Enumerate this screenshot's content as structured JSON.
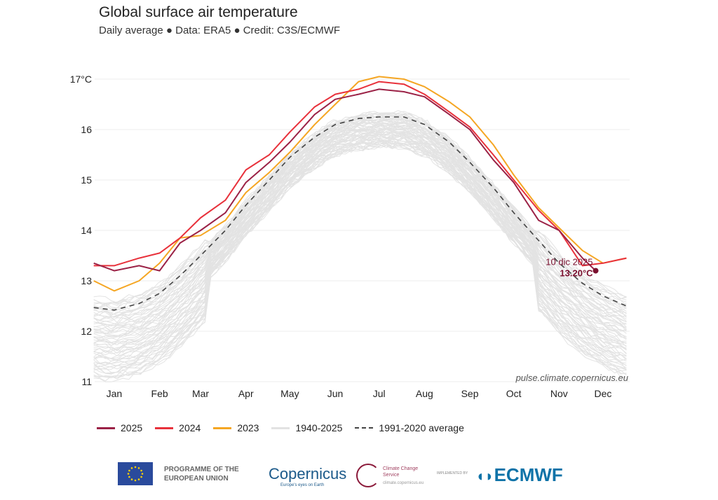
{
  "header": {
    "title": "Global surface air temperature",
    "subtitle": "Daily average ● Data: ERA5 ● Credit: C3S/ECMWF"
  },
  "chart_data": {
    "type": "line",
    "title": "Global surface air temperature",
    "subtitle": "Daily average ● Data: ERA5 ● Credit: C3S/ECMWF",
    "xlabel": "",
    "ylabel": "",
    "ylim": [
      11,
      17.2
    ],
    "yticks": [
      {
        "v": 11,
        "label": "11"
      },
      {
        "v": 12,
        "label": "12"
      },
      {
        "v": 13,
        "label": "13"
      },
      {
        "v": 14,
        "label": "14"
      },
      {
        "v": 15,
        "label": "15"
      },
      {
        "v": 16,
        "label": "16"
      },
      {
        "v": 17,
        "label": "17°C"
      }
    ],
    "xticks": [
      "Jan",
      "Feb",
      "Mar",
      "Apr",
      "May",
      "Jun",
      "Jul",
      "Aug",
      "Sep",
      "Oct",
      "Nov",
      "Dec"
    ],
    "grid": "horizontal",
    "legend_position": "bottom",
    "x": [
      "01-01",
      "01-15",
      "02-01",
      "02-15",
      "03-01",
      "03-15",
      "04-01",
      "04-15",
      "05-01",
      "05-15",
      "06-01",
      "06-15",
      "07-01",
      "07-15",
      "08-01",
      "08-15",
      "09-01",
      "09-15",
      "10-01",
      "10-15",
      "11-01",
      "11-15",
      "12-01",
      "12-15",
      "12-31"
    ],
    "series": [
      {
        "name": "1940-2025",
        "color": "#dddddd",
        "style": "band-of-lines"
      },
      {
        "name": "1991-2020 average",
        "color": "#444444",
        "style": "dashed",
        "values": [
          12.47,
          12.42,
          12.55,
          12.75,
          13.1,
          13.5,
          14.0,
          14.5,
          15.0,
          15.45,
          15.85,
          16.1,
          16.22,
          16.25,
          16.25,
          16.1,
          15.75,
          15.35,
          14.85,
          14.35,
          13.8,
          13.35,
          12.95,
          12.7,
          12.5
        ]
      },
      {
        "name": "2023",
        "color": "#f5a623",
        "values": [
          13.0,
          12.8,
          13.0,
          13.35,
          13.85,
          13.9,
          14.2,
          14.75,
          15.15,
          15.55,
          16.1,
          16.5,
          16.95,
          17.05,
          17.0,
          16.85,
          16.55,
          16.25,
          15.7,
          15.1,
          14.45,
          14.05,
          13.6,
          13.35,
          13.45
        ]
      },
      {
        "name": "2024",
        "color": "#e8313b",
        "values": [
          13.3,
          13.3,
          13.45,
          13.55,
          13.85,
          14.25,
          14.6,
          15.2,
          15.5,
          15.95,
          16.45,
          16.7,
          16.8,
          16.95,
          16.9,
          16.7,
          16.35,
          16.05,
          15.5,
          15.0,
          14.4,
          14.0,
          13.3,
          13.35,
          13.45
        ]
      },
      {
        "name": "2025",
        "color": "#9b2246",
        "values": [
          13.35,
          13.2,
          13.3,
          13.2,
          13.75,
          14.0,
          14.35,
          14.95,
          15.35,
          15.75,
          16.3,
          16.6,
          16.7,
          16.8,
          16.75,
          16.65,
          16.3,
          16.0,
          15.4,
          14.95,
          14.2,
          14.0,
          13.45,
          null,
          null
        ],
        "last_point": {
          "x": "12-10",
          "y": 13.2
        }
      }
    ],
    "annotation": {
      "date": "10 dic 2025",
      "value": "13.20°C",
      "color": "#7a0f2e"
    },
    "source": "pulse.climate.copernicus.eu"
  },
  "legend": [
    {
      "label": "2025",
      "color": "#9b2246"
    },
    {
      "label": "2024",
      "color": "#e8313b"
    },
    {
      "label": "2023",
      "color": "#f5a623"
    },
    {
      "label": "1940-2025",
      "color": "#dddddd"
    },
    {
      "label": "1991-2020 average",
      "color": "#444444",
      "dashed": true
    }
  ],
  "footer": {
    "eu": "PROGRAMME OF THE EUROPEAN UNION",
    "copernicus": "opernicus",
    "copernicus_tag": "Europe's eyes on Earth",
    "c3s": "Climate Change Service",
    "c3s_url": "climate.copernicus.eu",
    "implemented": "IMPLEMENTED BY",
    "ecmwf": "ECMWF"
  }
}
